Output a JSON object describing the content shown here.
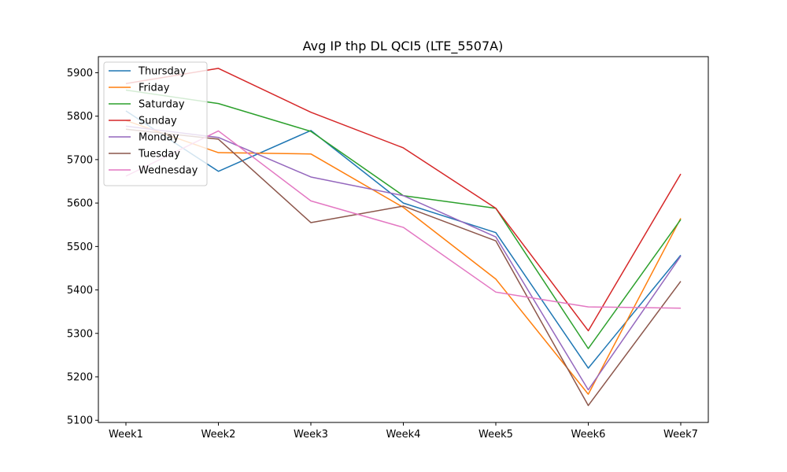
{
  "chart_data": {
    "type": "line",
    "title": "Avg IP thp DL QCI5 (LTE_5507A)",
    "xlabel": "",
    "ylabel": "",
    "categories": [
      "Week1",
      "Week2",
      "Week3",
      "Week4",
      "Week5",
      "Week6",
      "Week7"
    ],
    "ylim": [
      5095,
      5937
    ],
    "yticks": [
      5100,
      5200,
      5300,
      5400,
      5500,
      5600,
      5700,
      5800,
      5900
    ],
    "grid": false,
    "legend_position": "top-left",
    "series": [
      {
        "name": "Thursday",
        "color": "#1f77b4",
        "values": [
          5812,
          5673,
          5767,
          5600,
          5532,
          5220,
          5480
        ]
      },
      {
        "name": "Friday",
        "color": "#ff7f0e",
        "values": [
          5790,
          5716,
          5713,
          5590,
          5425,
          5160,
          5565
        ]
      },
      {
        "name": "Saturday",
        "color": "#2ca02c",
        "values": [
          5860,
          5829,
          5765,
          5617,
          5588,
          5265,
          5562
        ]
      },
      {
        "name": "Sunday",
        "color": "#d62728",
        "values": [
          5875,
          5910,
          5809,
          5727,
          5588,
          5306,
          5667
        ]
      },
      {
        "name": "Monday",
        "color": "#9467bd",
        "values": [
          5777,
          5751,
          5660,
          5617,
          5522,
          5170,
          5478
        ]
      },
      {
        "name": "Tuesday",
        "color": "#8c564b",
        "values": [
          5770,
          5747,
          5555,
          5593,
          5513,
          5134,
          5420
        ]
      },
      {
        "name": "Wednesday",
        "color": "#e377c2",
        "values": [
          5662,
          5766,
          5605,
          5544,
          5395,
          5361,
          5358
        ]
      }
    ]
  }
}
